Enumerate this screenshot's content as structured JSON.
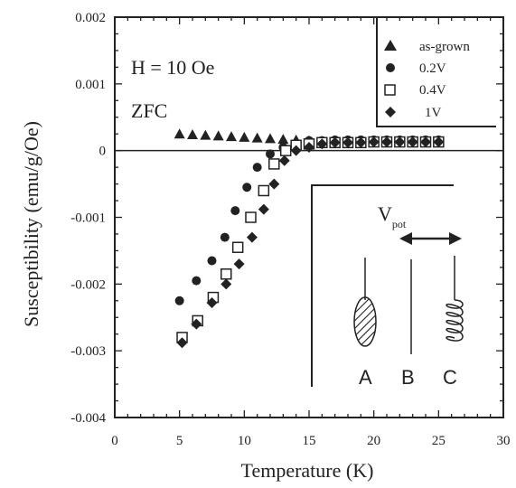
{
  "chart_data": {
    "type": "scatter",
    "title": "",
    "xlabel": "Temperature  (K)",
    "ylabel": "Susceptibility  (emu/g/Oe)",
    "xlim": [
      0,
      30
    ],
    "ylim": [
      -0.004,
      0.002
    ],
    "x_ticks": [
      "0",
      "5",
      "10",
      "15",
      "20",
      "25",
      "30"
    ],
    "y_ticks": [
      "0.002",
      "0.001",
      "0",
      "-0.001",
      "-0.002",
      "-0.003",
      "-0.004"
    ],
    "legend_position": "top-right",
    "grid": false,
    "annotations": [
      "H = 10  Oe",
      "ZFC"
    ],
    "series": [
      {
        "name": "as-grown",
        "marker": "triangle",
        "x": [
          5,
          6,
          7,
          8,
          9,
          10,
          11,
          12,
          13,
          14,
          15,
          16,
          17,
          18,
          19,
          20,
          21,
          22,
          23,
          24,
          25
        ],
        "y": [
          0.00025,
          0.00024,
          0.00023,
          0.00022,
          0.00021,
          0.0002,
          0.00019,
          0.00018,
          0.00017,
          0.00016,
          0.00015,
          0.00014,
          0.00014,
          0.00013,
          0.00013,
          0.00013,
          0.00013,
          0.00012,
          0.00012,
          0.00012,
          0.00012
        ]
      },
      {
        "name": "0.2V",
        "marker": "circle",
        "x": [
          5,
          6.3,
          7.5,
          8.5,
          9.3,
          10.2,
          11,
          12,
          13,
          14,
          15,
          16,
          17,
          18,
          19,
          20,
          21,
          22,
          23,
          24,
          25
        ],
        "y": [
          -0.00225,
          -0.00195,
          -0.00165,
          -0.0013,
          -0.0009,
          -0.00055,
          -0.00025,
          -5e-05,
          5e-05,
          0.0001,
          0.00015,
          0.00015,
          0.00016,
          0.00016,
          0.00016,
          0.00016,
          0.00016,
          0.00016,
          0.00016,
          0.00016,
          0.00016
        ]
      },
      {
        "name": "0.4V",
        "marker": "square",
        "x": [
          5.2,
          6.4,
          7.6,
          8.6,
          9.5,
          10.5,
          11.5,
          12.3,
          13.2,
          14,
          15,
          16,
          17,
          18,
          19,
          20,
          21,
          22,
          23,
          24,
          25
        ],
        "y": [
          -0.0028,
          -0.00255,
          -0.0022,
          -0.00185,
          -0.00145,
          -0.001,
          -0.0006,
          -0.0002,
          0.0,
          8e-05,
          0.0001,
          0.00012,
          0.00012,
          0.00012,
          0.00012,
          0.00013,
          0.00013,
          0.00013,
          0.00013,
          0.00013,
          0.00013
        ]
      },
      {
        "name": "1V",
        "marker": "diamond",
        "x": [
          5.2,
          6.3,
          7.5,
          8.6,
          9.6,
          10.6,
          11.5,
          12.3,
          13.1,
          14,
          15,
          16,
          17,
          18,
          19,
          20,
          21,
          22,
          23,
          24,
          25
        ],
        "y": [
          -0.00288,
          -0.0026,
          -0.00228,
          -0.002,
          -0.0017,
          -0.0013,
          -0.00088,
          -0.0005,
          -0.00015,
          0.0,
          5e-05,
          0.0001,
          0.00012,
          0.00012,
          0.00012,
          0.00013,
          0.00013,
          0.00013,
          0.00013,
          0.00013,
          0.00013
        ]
      }
    ]
  },
  "inset": {
    "label_main": "V",
    "label_sub": "pot",
    "letters": [
      "A",
      "B",
      "C"
    ]
  }
}
